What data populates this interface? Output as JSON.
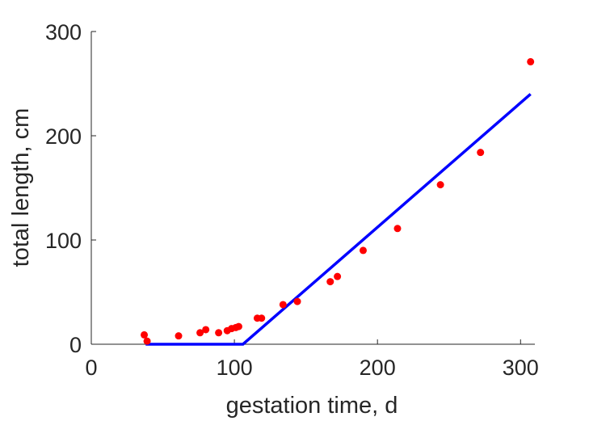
{
  "chart_data": {
    "type": "scatter",
    "xlabel": "gestation time, d",
    "ylabel": "total length, cm",
    "xlim": [
      0,
      310
    ],
    "ylim": [
      0,
      300
    ],
    "x_ticks": [
      0,
      100,
      200,
      300
    ],
    "y_ticks": [
      0,
      100,
      200,
      300
    ],
    "x_tick_labels": [
      "0",
      "100",
      "200",
      "300"
    ],
    "y_tick_labels": [
      "0",
      "100",
      "200",
      "300"
    ],
    "grid": false,
    "legend": "none",
    "series": [
      {
        "kind": "scatter",
        "color": "#ff0000",
        "points": [
          [
            37,
            9
          ],
          [
            39,
            3
          ],
          [
            61,
            8
          ],
          [
            76,
            11
          ],
          [
            80,
            14
          ],
          [
            89,
            11
          ],
          [
            95,
            13
          ],
          [
            98,
            15
          ],
          [
            101,
            16
          ],
          [
            103,
            17
          ],
          [
            116,
            25
          ],
          [
            119,
            25
          ],
          [
            134,
            38
          ],
          [
            144,
            41
          ],
          [
            167,
            60
          ],
          [
            172,
            65
          ],
          [
            190,
            90
          ],
          [
            214,
            111
          ],
          [
            244,
            153
          ],
          [
            272,
            184
          ],
          [
            307,
            271
          ]
        ]
      },
      {
        "kind": "line",
        "color": "#0000ff",
        "points": [
          [
            38,
            0
          ],
          [
            106,
            0
          ],
          [
            307,
            240
          ]
        ]
      }
    ]
  }
}
